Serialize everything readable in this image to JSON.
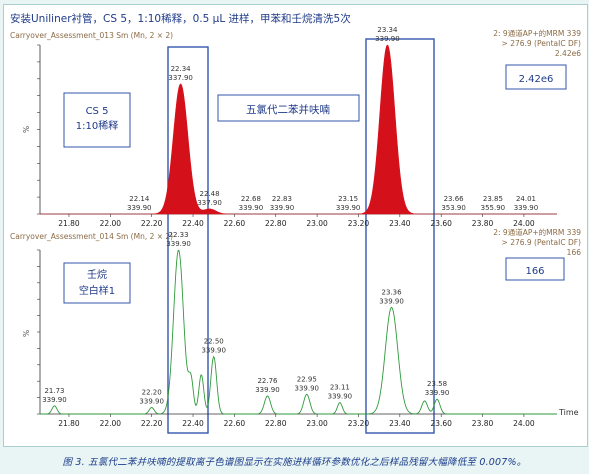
{
  "title": "安装Uniliner衬管，CS 5，1:10稀释，0.5 μL 进样，甲苯和壬烷清洗5次",
  "caption": "图 3. 五氯代二苯并呋喃的提取离子色谱图显示在实施进样循环参数优化之后样品残留大幅降低至 0.007%。",
  "colors": {
    "title": "#1f3a8a",
    "label": "#8a6a44",
    "red": "#d4111b",
    "green": "#2e9a3a",
    "box": "#3355aa",
    "blue_label": "#1f3a8a"
  },
  "chart_data": [
    {
      "type": "line",
      "fill": true,
      "file_label": "Carryover_Assessment_013 Sm (Mn, 2 × 2)",
      "info": [
        "2: 9通道AP+的MRM 339",
        "> 276.9 (PentaIC DF)",
        "2.42e6"
      ],
      "intensity": "2.42e6",
      "ylabel": "%",
      "xlim": [
        21.66,
        24.16
      ],
      "ylim": [
        0,
        100
      ],
      "xticks": [
        "21.80",
        "22.00",
        "22.20",
        "22.40",
        "22.60",
        "22.80",
        "23.00",
        "23.20",
        "23.40",
        "23.60",
        "23.80",
        "24.00"
      ],
      "peaks": [
        {
          "rt": 22.34,
          "height": 77,
          "width": 0.035
        },
        {
          "rt": 22.48,
          "height": 3,
          "width": 0.03
        },
        {
          "rt": 23.34,
          "height": 100,
          "width": 0.036
        }
      ],
      "peak_labels": [
        {
          "rt": "22.14",
          "mz": "339.90"
        },
        {
          "rt": "22.34",
          "mz": "337.90"
        },
        {
          "rt": "22.48",
          "mz": "337.90"
        },
        {
          "rt": "22.68",
          "mz": "339.90"
        },
        {
          "rt": "22.83",
          "mz": "339.90"
        },
        {
          "rt": "23.15",
          "mz": "339.90"
        },
        {
          "rt": "23.34",
          "mz": "339.90"
        },
        {
          "rt": "23.66",
          "mz": "353.90"
        },
        {
          "rt": "23.85",
          "mz": "355.90"
        },
        {
          "rt": "24.01",
          "mz": "339.90"
        }
      ],
      "annotation_left": [
        "CS 5",
        "1:10稀释"
      ],
      "annotation_center": "五氯代二苯并呋喃"
    },
    {
      "type": "line",
      "fill": false,
      "file_label": "Carryover_Assessment_014 Sm (Mn, 2 × 2)",
      "info": [
        "2: 9通道AP+的MRM 339",
        "> 276.9 (PentaIC DF)",
        "166"
      ],
      "intensity": "166",
      "ylabel": "%",
      "xaxis_label": "Time",
      "xlim": [
        21.66,
        24.16
      ],
      "ylim": [
        0,
        100
      ],
      "xticks": [
        "21.80",
        "22.00",
        "22.20",
        "22.40",
        "22.60",
        "22.80",
        "23.00",
        "23.20",
        "23.40",
        "23.60",
        "23.80",
        "24.00"
      ],
      "peaks": [
        {
          "rt": 21.73,
          "height": 5,
          "width": 0.012
        },
        {
          "rt": 22.2,
          "height": 4,
          "width": 0.012
        },
        {
          "rt": 22.33,
          "height": 100,
          "width": 0.024
        },
        {
          "rt": 22.39,
          "height": 20,
          "width": 0.012
        },
        {
          "rt": 22.44,
          "height": 24,
          "width": 0.012
        },
        {
          "rt": 22.5,
          "height": 35,
          "width": 0.014
        },
        {
          "rt": 22.76,
          "height": 11,
          "width": 0.015
        },
        {
          "rt": 22.95,
          "height": 12,
          "width": 0.015
        },
        {
          "rt": 23.11,
          "height": 7,
          "width": 0.012
        },
        {
          "rt": 23.36,
          "height": 65,
          "width": 0.03
        },
        {
          "rt": 23.52,
          "height": 8,
          "width": 0.014
        },
        {
          "rt": 23.58,
          "height": 9,
          "width": 0.014
        }
      ],
      "peak_labels": [
        {
          "rt": "21.73",
          "mz": "339.90"
        },
        {
          "rt": "22.20",
          "mz": "339.90"
        },
        {
          "rt": "22.33",
          "mz": "339.90"
        },
        {
          "rt": "22.50",
          "mz": "339.90"
        },
        {
          "rt": "22.76",
          "mz": "339.90"
        },
        {
          "rt": "22.95",
          "mz": "339.90"
        },
        {
          "rt": "23.11",
          "mz": "339.90"
        },
        {
          "rt": "23.36",
          "mz": "339.90"
        },
        {
          "rt": "23.58",
          "mz": "339.90"
        }
      ],
      "annotation_left": [
        "壬烷",
        "空白样1"
      ]
    }
  ]
}
